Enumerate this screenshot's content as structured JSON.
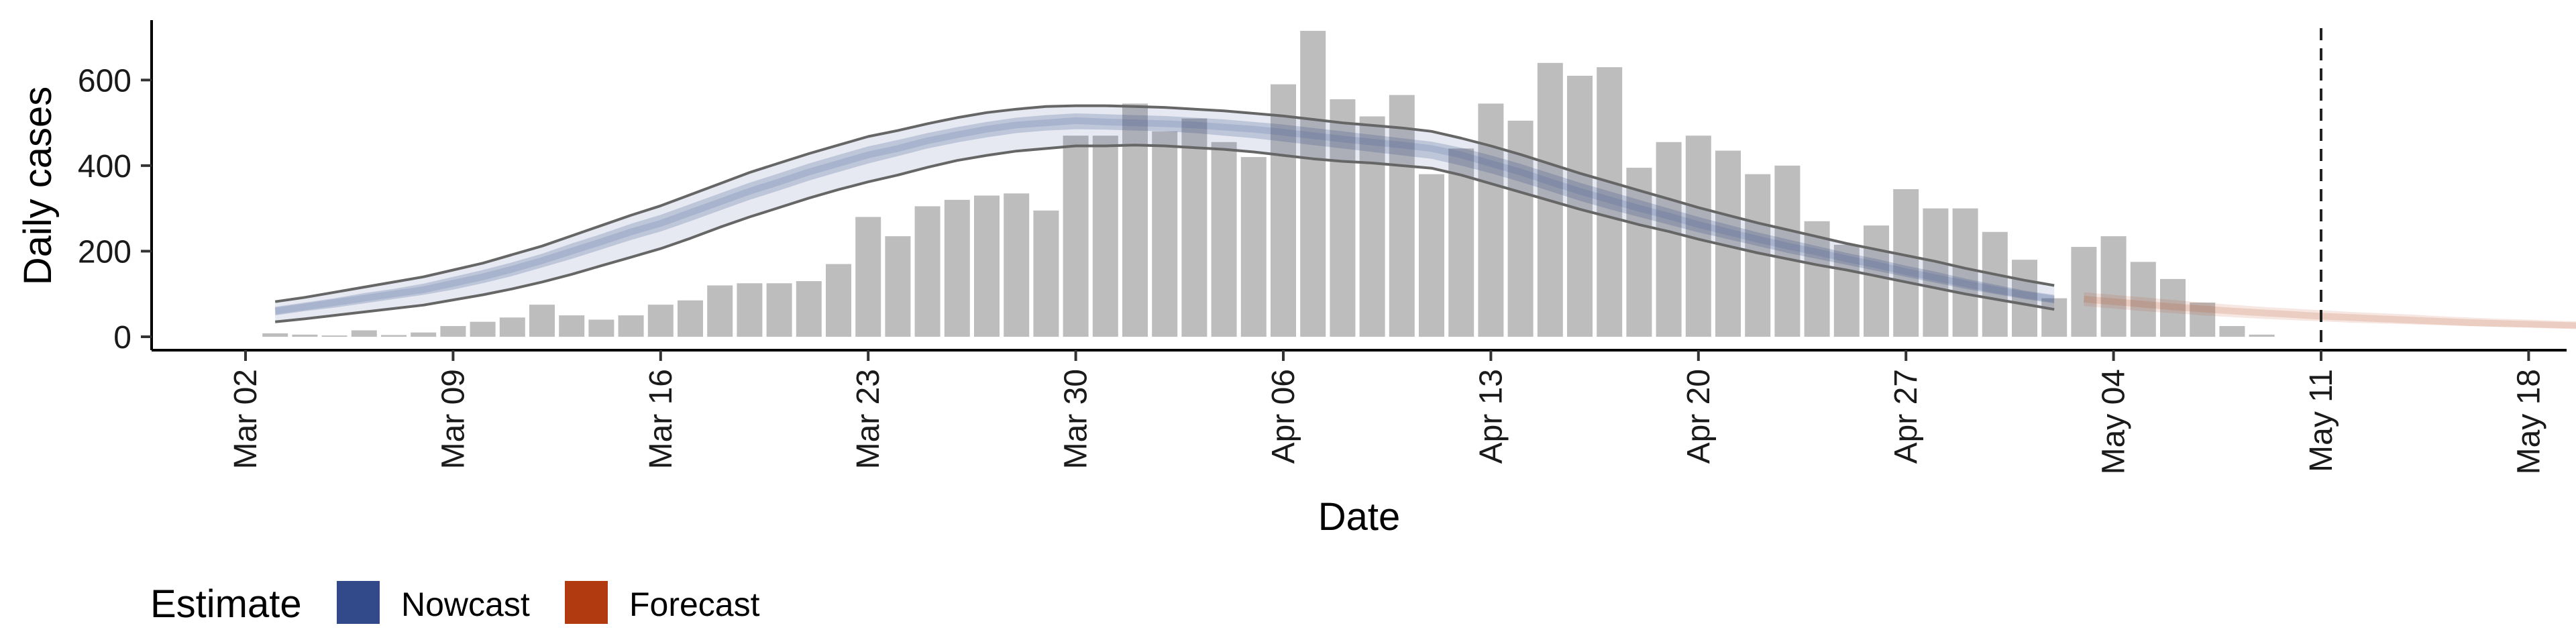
{
  "chart_data": {
    "type": "bar",
    "xlabel": "Date",
    "ylabel": "Daily cases",
    "ylim": [
      0,
      740
    ],
    "y_ticks": [
      "0",
      "200",
      "400",
      "600"
    ],
    "x_ticks": [
      "Mar 02",
      "Mar 09",
      "Mar 16",
      "Mar 23",
      "Mar 30",
      "Apr 06",
      "Apr 13",
      "Apr 20",
      "Apr 27",
      "May 04",
      "May 11",
      "May 18"
    ],
    "bars": {
      "start_date": "2020-03-03",
      "values": [
        8,
        5,
        3,
        15,
        4,
        10,
        25,
        35,
        45,
        75,
        50,
        40,
        50,
        75,
        85,
        120,
        125,
        125,
        130,
        170,
        280,
        235,
        305,
        320,
        330,
        335,
        295,
        470,
        470,
        545,
        480,
        510,
        455,
        420,
        590,
        715,
        555,
        515,
        565,
        380,
        440,
        545,
        505,
        640,
        610,
        630,
        395,
        455,
        470,
        435,
        380,
        400,
        270,
        215,
        260,
        345,
        300,
        300,
        245,
        180,
        90,
        210,
        235,
        175,
        135,
        80,
        25,
        5
      ]
    },
    "nowcast": {
      "start_date": "2020-03-03",
      "median": [
        60,
        70,
        80,
        90,
        100,
        110,
        125,
        140,
        158,
        178,
        200,
        222,
        245,
        265,
        290,
        315,
        340,
        362,
        385,
        405,
        425,
        440,
        458,
        472,
        485,
        495,
        500,
        505,
        502,
        500,
        498,
        495,
        490,
        485,
        478,
        470,
        462,
        455,
        448,
        440,
        425,
        405,
        385,
        362,
        340,
        320,
        300,
        282,
        262,
        245,
        228,
        212,
        198,
        182,
        168,
        152,
        138,
        124,
        110,
        98,
        88
      ],
      "inner_lower": [
        50,
        60,
        68,
        78,
        88,
        98,
        110,
        125,
        142,
        162,
        182,
        204,
        226,
        246,
        270,
        295,
        320,
        342,
        365,
        385,
        405,
        422,
        440,
        454,
        466,
        476,
        482,
        485,
        484,
        482,
        480,
        476,
        470,
        464,
        456,
        448,
        440,
        432,
        424,
        416,
        400,
        382,
        362,
        340,
        318,
        298,
        280,
        262,
        244,
        228,
        212,
        196,
        182,
        168,
        154,
        140,
        126,
        112,
        100,
        88,
        78
      ],
      "inner_upper": [
        70,
        80,
        90,
        102,
        112,
        124,
        140,
        156,
        174,
        194,
        218,
        240,
        264,
        285,
        310,
        335,
        360,
        382,
        405,
        425,
        445,
        460,
        476,
        490,
        502,
        512,
        518,
        522,
        520,
        518,
        516,
        512,
        508,
        502,
        496,
        488,
        480,
        472,
        464,
        456,
        442,
        424,
        404,
        382,
        360,
        340,
        320,
        300,
        280,
        262,
        244,
        228,
        212,
        196,
        182,
        166,
        152,
        136,
        122,
        108,
        98
      ],
      "outer_lower": [
        35,
        42,
        50,
        58,
        66,
        74,
        86,
        98,
        112,
        128,
        146,
        166,
        186,
        206,
        230,
        256,
        280,
        302,
        324,
        344,
        362,
        378,
        396,
        412,
        424,
        434,
        440,
        446,
        446,
        448,
        446,
        442,
        438,
        432,
        424,
        416,
        410,
        406,
        400,
        394,
        378,
        358,
        338,
        318,
        298,
        280,
        262,
        246,
        228,
        212,
        196,
        182,
        168,
        156,
        142,
        128,
        114,
        100,
        88,
        76,
        64
      ],
      "outer_upper": [
        82,
        92,
        104,
        116,
        128,
        140,
        156,
        172,
        192,
        212,
        236,
        260,
        284,
        306,
        332,
        358,
        384,
        406,
        428,
        448,
        468,
        482,
        498,
        512,
        524,
        532,
        538,
        540,
        540,
        538,
        536,
        532,
        528,
        522,
        516,
        508,
        500,
        494,
        488,
        480,
        464,
        446,
        426,
        404,
        382,
        362,
        342,
        322,
        302,
        284,
        266,
        250,
        234,
        218,
        204,
        190,
        176,
        160,
        146,
        132,
        120
      ]
    },
    "forecast": {
      "start_date": "2020-05-03",
      "median": [
        88,
        82,
        76,
        70,
        65,
        60,
        56,
        52,
        48,
        45,
        42,
        39,
        36,
        33,
        31,
        29,
        27,
        25,
        24,
        22
      ],
      "lower": [
        72,
        66,
        60,
        55,
        50,
        46,
        42,
        39,
        36,
        33,
        31,
        29,
        27,
        25,
        23,
        22,
        20,
        19,
        18,
        16
      ],
      "upper": [
        104,
        98,
        92,
        86,
        80,
        75,
        70,
        66,
        62,
        58,
        55,
        52,
        48,
        45,
        42,
        40,
        37,
        35,
        33,
        31
      ]
    },
    "reference_line_date": "2020-05-11",
    "legend": {
      "title": "Estimate",
      "position": "bottom-left",
      "items": [
        {
          "label": "Nowcast",
          "color": "#32498a"
        },
        {
          "label": "Forecast",
          "color": "#b23a10"
        }
      ]
    },
    "colors": {
      "bars": "#bdbdbd",
      "nowcast": "#32498a",
      "forecast": "#b23a10",
      "outer_lines": "#666666",
      "reference_line": "#222222"
    },
    "grid": false
  }
}
